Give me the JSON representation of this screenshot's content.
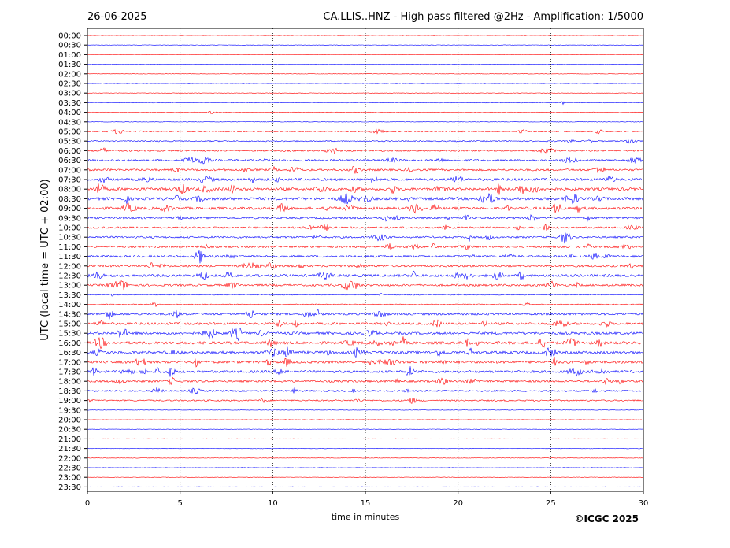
{
  "header": {
    "date": "26-06-2025",
    "title": "CA.LLIS..HNZ - High pass filtered @2Hz - Amplification: 1/5000"
  },
  "copyright": "©ICGC 2025",
  "chart_data": {
    "type": "line",
    "title": "CA.LLIS..HNZ - High pass filtered @2Hz - Amplification: 1/5000",
    "date": "26-06-2025",
    "xlabel": "time in minutes",
    "ylabel": "UTC (local time = UTC + 02:00)",
    "xlim": [
      0,
      30
    ],
    "x_ticks": [
      "0",
      "5",
      "10",
      "15",
      "20",
      "25",
      "30"
    ],
    "x_gridlines": [
      5,
      10,
      15,
      20,
      25
    ],
    "row_labels": [
      "00:00",
      "00:30",
      "01:00",
      "01:30",
      "02:00",
      "02:30",
      "03:00",
      "03:30",
      "04:00",
      "04:30",
      "05:00",
      "05:30",
      "06:00",
      "06:30",
      "07:00",
      "07:30",
      "08:00",
      "08:30",
      "09:00",
      "09:30",
      "10:00",
      "10:30",
      "11:00",
      "11:30",
      "12:00",
      "12:30",
      "13:00",
      "13:30",
      "14:00",
      "14:30",
      "15:00",
      "15:30",
      "16:00",
      "16:30",
      "17:00",
      "17:30",
      "18:00",
      "18:30",
      "19:00",
      "19:30",
      "20:00",
      "20:30",
      "21:00",
      "21:30",
      "22:00",
      "22:30",
      "23:00",
      "23:30"
    ],
    "trace_colors": [
      "#ff0000",
      "#0000ff"
    ],
    "activity": [
      0.02,
      0.02,
      0.02,
      0.02,
      0.02,
      0.02,
      0.05,
      0.08,
      0.08,
      0.05,
      0.3,
      0.25,
      0.4,
      0.55,
      0.55,
      0.7,
      0.8,
      0.85,
      0.75,
      0.5,
      0.5,
      0.5,
      0.55,
      0.6,
      0.6,
      0.75,
      0.55,
      0.15,
      0.2,
      0.6,
      0.65,
      0.7,
      0.8,
      0.75,
      0.75,
      0.7,
      0.55,
      0.45,
      0.35,
      0.02,
      0.02,
      0.02,
      0.02,
      0.02,
      0.02,
      0.02,
      0.02,
      0.02
    ]
  }
}
